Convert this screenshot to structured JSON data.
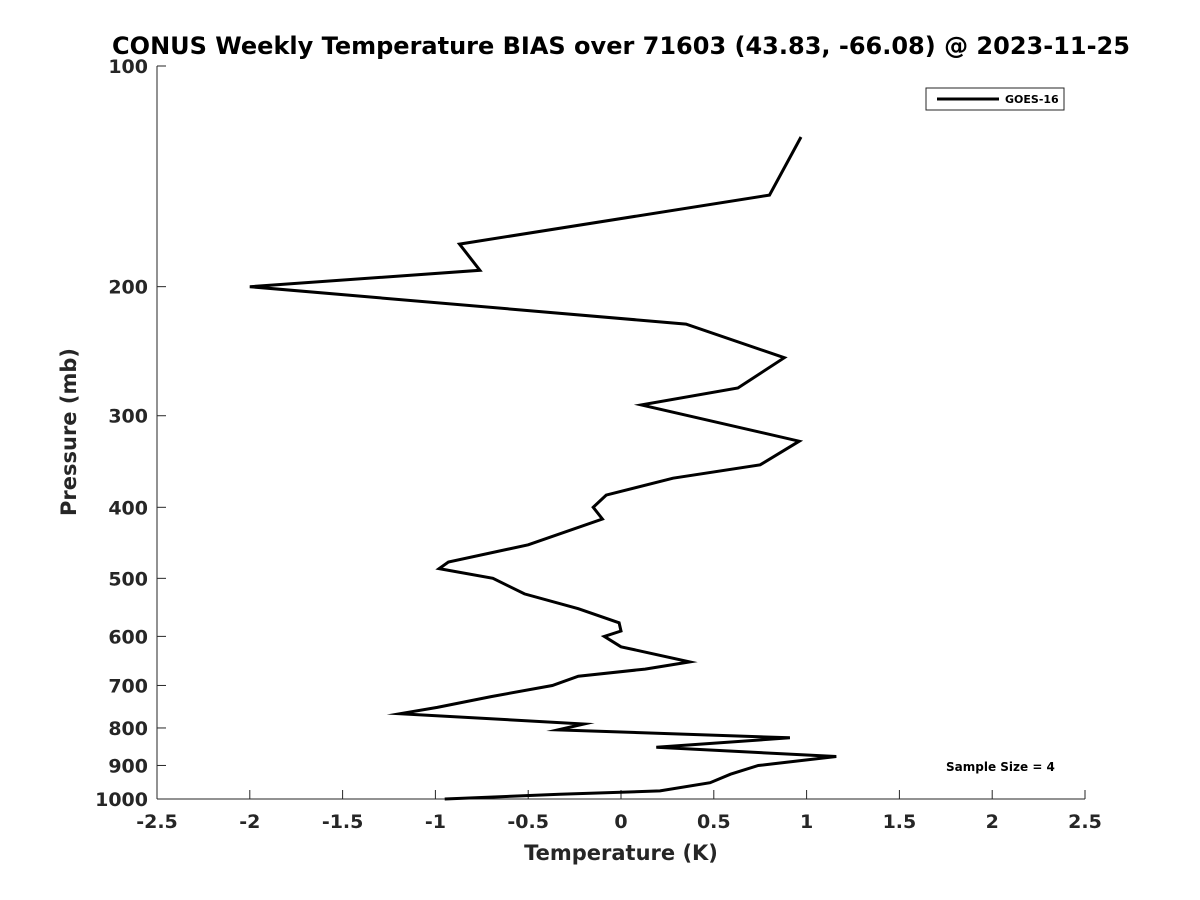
{
  "chart_data": {
    "type": "line",
    "title": "CONUS Weekly Temperature BIAS over 71603 (43.83, -66.08) @ 2023-11-25",
    "xlabel": "Temperature (K)",
    "ylabel": "Pressure (mb)",
    "xlim": [
      -2.5,
      2.5
    ],
    "ylim": [
      100,
      1000
    ],
    "y_scale": "log",
    "y_reversed": true,
    "x_ticks": [
      -2.5,
      -2,
      -1.5,
      -1,
      -0.5,
      0,
      0.5,
      1,
      1.5,
      2,
      2.5
    ],
    "x_tick_labels": [
      "-2.5",
      "-2",
      "-1.5",
      "-1",
      "-0.5",
      "0",
      "0.5",
      "1",
      "1.5",
      "2",
      "2.5"
    ],
    "y_ticks": [
      100,
      200,
      300,
      400,
      500,
      600,
      700,
      800,
      900,
      1000
    ],
    "y_tick_labels": [
      "100",
      "200",
      "300",
      "400",
      "500",
      "600",
      "700",
      "800",
      "900",
      "1000"
    ],
    "grid": false,
    "legend_position": "top-right",
    "series": [
      {
        "name": "GOES-16",
        "color": "#000000",
        "points": [
          {
            "x": 0.97,
            "y": 125
          },
          {
            "x": 0.8,
            "y": 150
          },
          {
            "x": -0.87,
            "y": 175
          },
          {
            "x": -0.76,
            "y": 190
          },
          {
            "x": -2.0,
            "y": 200
          },
          {
            "x": 0.35,
            "y": 225
          },
          {
            "x": 0.88,
            "y": 250
          },
          {
            "x": 0.63,
            "y": 275
          },
          {
            "x": 0.11,
            "y": 290
          },
          {
            "x": 0.96,
            "y": 325
          },
          {
            "x": 0.75,
            "y": 350
          },
          {
            "x": 0.28,
            "y": 365
          },
          {
            "x": -0.08,
            "y": 385
          },
          {
            "x": -0.15,
            "y": 400
          },
          {
            "x": -0.1,
            "y": 415
          },
          {
            "x": -0.5,
            "y": 450
          },
          {
            "x": -0.93,
            "y": 475
          },
          {
            "x": -0.98,
            "y": 485
          },
          {
            "x": -0.69,
            "y": 500
          },
          {
            "x": -0.52,
            "y": 525
          },
          {
            "x": -0.23,
            "y": 550
          },
          {
            "x": -0.01,
            "y": 575
          },
          {
            "x": 0.0,
            "y": 590
          },
          {
            "x": -0.09,
            "y": 600
          },
          {
            "x": 0.0,
            "y": 620
          },
          {
            "x": 0.37,
            "y": 650
          },
          {
            "x": 0.13,
            "y": 665
          },
          {
            "x": -0.23,
            "y": 680
          },
          {
            "x": -0.37,
            "y": 700
          },
          {
            "x": -0.7,
            "y": 725
          },
          {
            "x": -0.99,
            "y": 750
          },
          {
            "x": -1.19,
            "y": 765
          },
          {
            "x": -0.2,
            "y": 790
          },
          {
            "x": -0.34,
            "y": 805
          },
          {
            "x": 0.91,
            "y": 825
          },
          {
            "x": 0.19,
            "y": 850
          },
          {
            "x": 1.16,
            "y": 875
          },
          {
            "x": 0.74,
            "y": 900
          },
          {
            "x": 0.59,
            "y": 925
          },
          {
            "x": 0.48,
            "y": 950
          },
          {
            "x": 0.21,
            "y": 975
          },
          {
            "x": -0.33,
            "y": 985
          },
          {
            "x": -0.95,
            "y": 1000
          }
        ]
      }
    ],
    "annotation": "Sample Size = 4"
  }
}
